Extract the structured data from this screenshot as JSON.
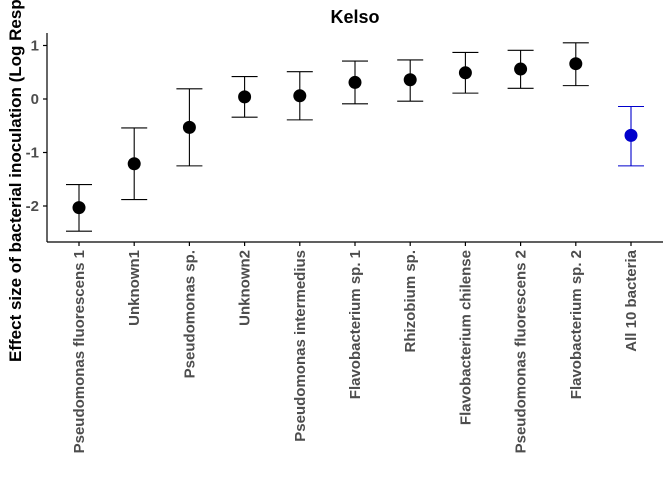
{
  "chart_data": {
    "type": "scatter",
    "title": "Kelso",
    "ylabel": "Effect size of bacterial inoculation (Log Response Ratio)",
    "xlabel": "",
    "ylim": [
      -2.65,
      1.25
    ],
    "yticks": [
      -2,
      -1,
      0,
      1
    ],
    "yticklabels": [
      "-2",
      "-1",
      "0",
      "1"
    ],
    "categories": [
      "Pseudomonas fluorescens 1",
      "Unknown1",
      "Pseudomonas sp.",
      "Unknown2",
      "Pseudomonas intermedius",
      "Flavobacterium sp. 1",
      "Rhizobium sp.",
      "Flavobacterium chilense",
      "Pseudomonas fluorescens 2",
      "Flavobacterium sp. 2",
      "All 10 bacteria"
    ],
    "values": [
      -2.03,
      -1.21,
      -0.53,
      0.04,
      0.06,
      0.31,
      0.36,
      0.49,
      0.56,
      0.66,
      -0.68
    ],
    "lower": [
      -2.47,
      -1.88,
      -1.25,
      -0.34,
      -0.39,
      -0.09,
      -0.04,
      0.11,
      0.2,
      0.25,
      -1.25
    ],
    "upper": [
      -1.6,
      -0.54,
      0.19,
      0.42,
      0.51,
      0.71,
      0.73,
      0.87,
      0.91,
      1.05,
      -0.14
    ],
    "colors": [
      "#000000",
      "#000000",
      "#000000",
      "#000000",
      "#000000",
      "#000000",
      "#000000",
      "#000000",
      "#000000",
      "#000000",
      "#0000cc"
    ],
    "grid": false,
    "legend": "none"
  }
}
